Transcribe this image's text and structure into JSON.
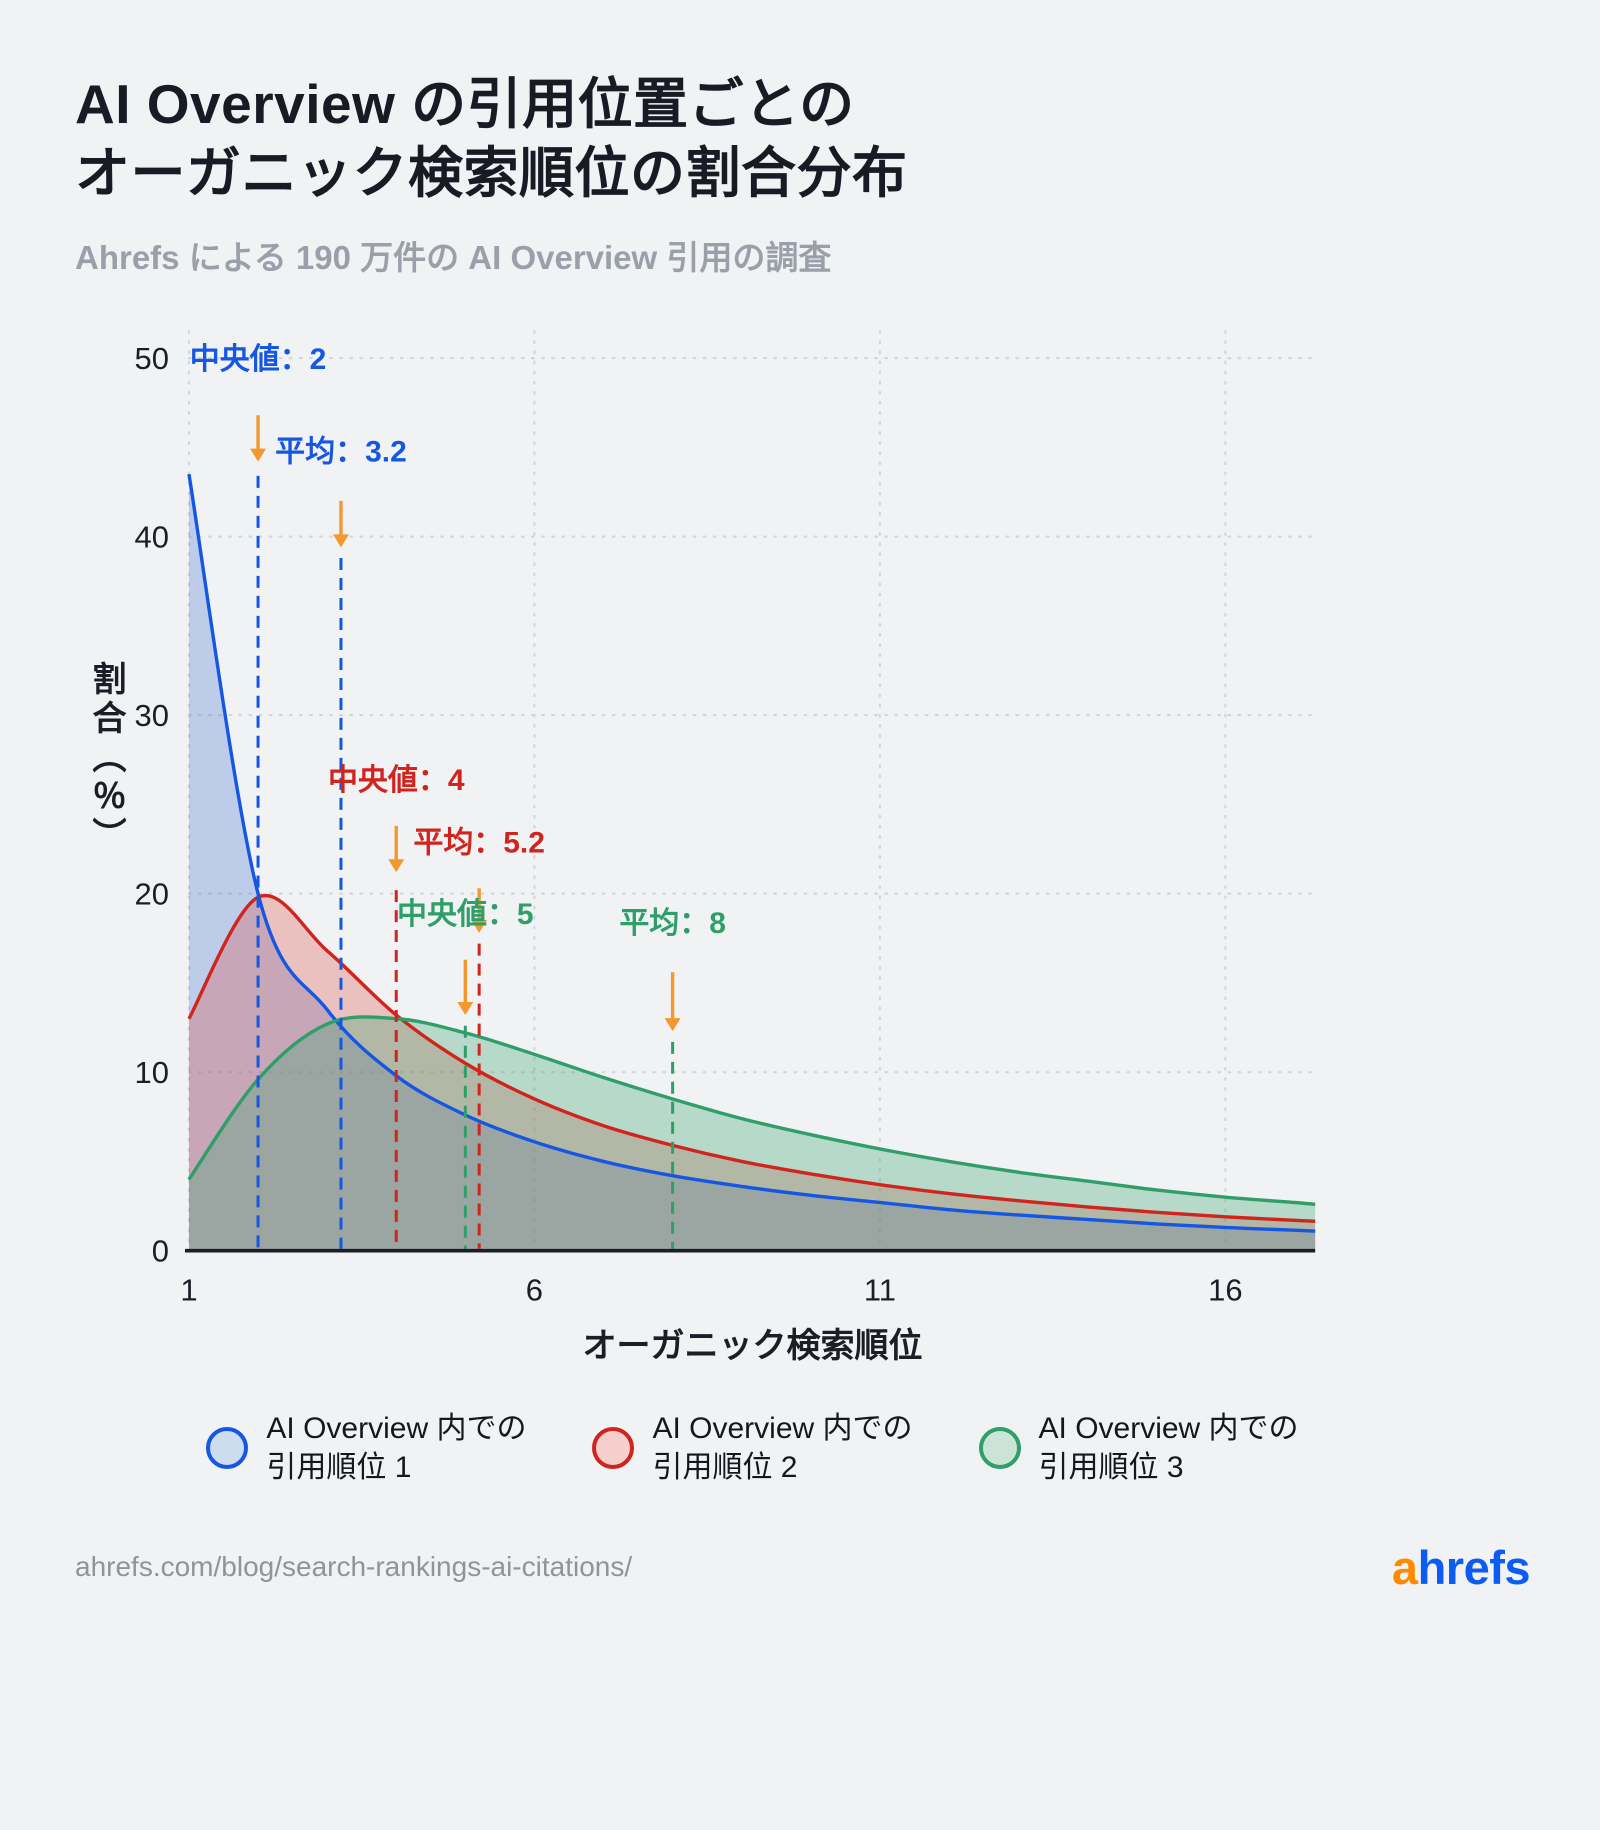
{
  "header": {
    "title_line1": "AI Overview の引用位置ごとの",
    "title_line2": "オーガニック検索順位の割合分布",
    "subtitle": "Ahrefs による 190 万件の AI Overview 引用の調査"
  },
  "chart_data": {
    "type": "area",
    "title": "AI Overview の引用位置ごとのオーガニック検索順位の割合分布",
    "xlabel": "オーガニック検索順位",
    "ylabel": "割合（％）",
    "xlim": [
      1,
      17.3
    ],
    "ylim": [
      0,
      51.5
    ],
    "x_ticks": [
      1,
      6,
      11,
      16
    ],
    "y_ticks": [
      0,
      10,
      20,
      30,
      40,
      50
    ],
    "grid": true,
    "grid_color": "#d3d5da",
    "axis_color": "#1b1d27",
    "arrow_color": "#f2982f",
    "x": [
      1,
      2,
      3,
      4,
      5,
      6,
      7,
      8,
      9,
      10,
      11,
      12,
      13,
      14,
      15,
      16,
      17,
      17.3
    ],
    "series": [
      {
        "name": "AI Overview 内での引用順位 1",
        "color": "#1557e0",
        "fill": "rgba(70,115,205,0.30)",
        "median": 2,
        "mean": 3.2,
        "values": [
          43.5,
          20,
          13.5,
          9.8,
          7.6,
          6.1,
          5.0,
          4.2,
          3.6,
          3.1,
          2.7,
          2.3,
          2.0,
          1.75,
          1.5,
          1.3,
          1.15,
          1.1
        ]
      },
      {
        "name": "AI Overview 内での引用順位 2",
        "color": "#d0241e",
        "fill": "rgba(222,78,74,0.30)",
        "median": 4,
        "mean": 5.2,
        "values": [
          13,
          19.8,
          16.8,
          13.2,
          10.5,
          8.5,
          7.0,
          5.9,
          5.0,
          4.3,
          3.7,
          3.2,
          2.8,
          2.45,
          2.15,
          1.9,
          1.7,
          1.65
        ]
      },
      {
        "name": "AI Overview 内での引用順位 3",
        "color": "#2f9e68",
        "fill": "rgba(62,164,112,0.32)",
        "median": 5,
        "mean": 8,
        "values": [
          4,
          9.6,
          12.7,
          13.0,
          12.2,
          11.0,
          9.7,
          8.5,
          7.4,
          6.5,
          5.7,
          5.0,
          4.4,
          3.9,
          3.4,
          3.0,
          2.7,
          2.6
        ]
      }
    ],
    "annotations": [
      {
        "label": "中央値：2",
        "x": 2,
        "color": "#1557e0",
        "label_y": 49.4,
        "arrow_top": 46.8,
        "arrow_bottom": 44.2,
        "line_top": 43.4
      },
      {
        "label": "平均：3.2",
        "x": 3.2,
        "color": "#1557e0",
        "label_y": 44.2,
        "arrow_top": 42.0,
        "arrow_bottom": 39.4,
        "line_top": 38.8
      },
      {
        "label": "中央値：4",
        "x": 4,
        "color": "#d0241e",
        "label_y": 25.8,
        "arrow_top": 23.8,
        "arrow_bottom": 21.2,
        "line_top": 20.2
      },
      {
        "label": "平均：5.2",
        "x": 5.2,
        "color": "#d0241e",
        "label_y": 22.3,
        "arrow_top": 20.3,
        "arrow_bottom": 17.8,
        "line_top": 17.2
      },
      {
        "label": "中央値：5",
        "x": 5,
        "color": "#2f9e68",
        "label_y": 18.3,
        "arrow_top": 16.3,
        "arrow_bottom": 13.2,
        "line_top": 12.6
      },
      {
        "label": "平均：8",
        "x": 8,
        "color": "#2f9e68",
        "label_y": 17.8,
        "arrow_top": 15.6,
        "arrow_bottom": 12.3,
        "line_top": 11.7
      }
    ]
  },
  "legend": {
    "items": [
      {
        "line1": "AI Overview 内での",
        "line2": "引用順位 1",
        "color": "#1557e0",
        "fill": "#cddcef"
      },
      {
        "line1": "AI Overview 内での",
        "line2": "引用順位 2",
        "color": "#d0241e",
        "fill": "#f4cfcc"
      },
      {
        "line1": "AI Overview 内での",
        "line2": "引用順位 3",
        "color": "#2f9e68",
        "fill": "#cbe4d6"
      }
    ]
  },
  "footer": {
    "source": "ahrefs.com/blog/search-rankings-ai-citations/",
    "logo_a": "a",
    "logo_rest": "hrefs",
    "logo_a_color": "#ff8a00",
    "logo_rest_color": "#0d5cf2"
  }
}
